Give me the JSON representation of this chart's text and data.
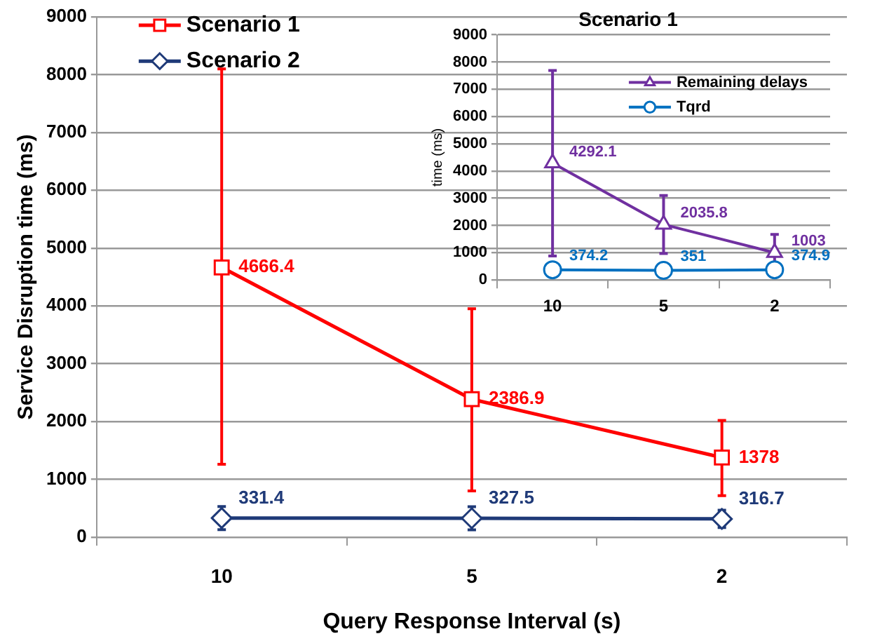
{
  "chart_data": [
    {
      "type": "line",
      "xlabel": "Query Response Interval (s)",
      "ylabel": "Service Disruption time (ms)",
      "categories": [
        "10",
        "5",
        "2"
      ],
      "ylim": [
        0,
        9000
      ],
      "yticks": [
        0,
        1000,
        2000,
        3000,
        4000,
        5000,
        6000,
        7000,
        8000,
        9000
      ],
      "grid": "y",
      "legend": "top left",
      "data_labels": true,
      "series": [
        {
          "name": "Scenario 1",
          "color": "#ff0000",
          "marker": "square",
          "values": [
            4666.4,
            2386.9,
            1378
          ],
          "errors": [
            [
              1260,
              8100
            ],
            [
              800,
              3950
            ],
            [
              720,
              2020
            ]
          ]
        },
        {
          "name": "Scenario 2",
          "color": "#1f3a78",
          "marker": "diamond",
          "values": [
            331.4,
            327.5,
            316.7
          ],
          "errors": [
            200,
            200,
            150
          ]
        }
      ]
    },
    {
      "type": "line",
      "title": "Scenario 1",
      "ylabel": "time (ms)",
      "categories": [
        "10",
        "5",
        "2"
      ],
      "ylim": [
        0,
        9000
      ],
      "yticks": [
        0,
        1000,
        2000,
        3000,
        4000,
        5000,
        6000,
        7000,
        8000,
        9000
      ],
      "grid": "y",
      "legend": "top right",
      "data_labels": true,
      "series": [
        {
          "name": "Remaining delays",
          "color": "#7030a0",
          "marker": "triangle",
          "values": [
            4292.1,
            2035.8,
            1003
          ],
          "errors": [
            [
              880,
              7690
            ],
            [
              970,
              3100
            ],
            [
              330,
              1670
            ]
          ]
        },
        {
          "name": "Tqrd",
          "color": "#0070c0",
          "marker": "circle",
          "values": [
            374.2,
            351,
            374.9
          ]
        }
      ]
    }
  ]
}
